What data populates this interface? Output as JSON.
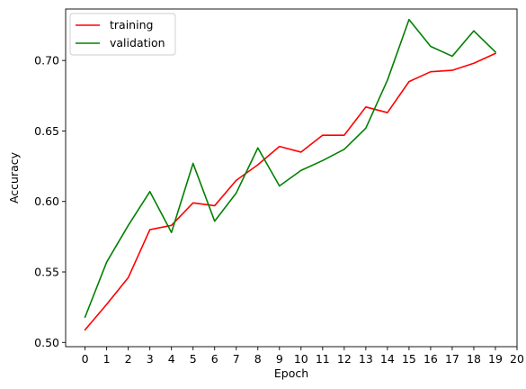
{
  "chart_data": {
    "type": "line",
    "title": "",
    "xlabel": "Epoch",
    "ylabel": "Accuracy",
    "xlim": [
      -0.9,
      20
    ],
    "ylim": [
      0.497,
      0.7365
    ],
    "xticks": [
      0,
      1,
      2,
      3,
      4,
      5,
      6,
      7,
      8,
      9,
      10,
      11,
      12,
      13,
      14,
      15,
      16,
      17,
      18,
      19,
      20
    ],
    "yticks": [
      0.5,
      0.55,
      0.6,
      0.65,
      0.7
    ],
    "ytick_labels": [
      "0.50",
      "0.55",
      "0.60",
      "0.65",
      "0.70"
    ],
    "grid": false,
    "legend_position": "top-left",
    "x": [
      0,
      1,
      2,
      3,
      4,
      5,
      6,
      7,
      8,
      9,
      10,
      11,
      12,
      13,
      14,
      15,
      16,
      17,
      18,
      19
    ],
    "series": [
      {
        "name": "training",
        "color": "#ff0000",
        "values": [
          0.509,
          0.527,
          0.546,
          0.58,
          0.583,
          0.599,
          0.597,
          0.615,
          0.626,
          0.639,
          0.635,
          0.647,
          0.647,
          0.667,
          0.663,
          0.685,
          0.692,
          0.693,
          0.698,
          0.705
        ]
      },
      {
        "name": "validation",
        "color": "#008000",
        "values": [
          0.518,
          0.557,
          0.583,
          0.607,
          0.578,
          0.627,
          0.586,
          0.606,
          0.638,
          0.611,
          0.622,
          0.629,
          0.637,
          0.652,
          0.686,
          0.729,
          0.71,
          0.703,
          0.721,
          0.706
        ]
      }
    ]
  }
}
